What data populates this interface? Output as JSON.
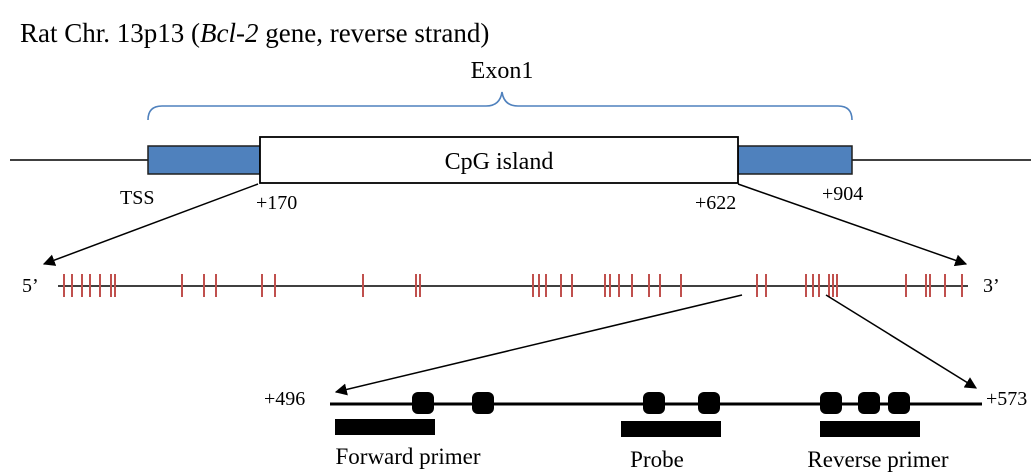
{
  "title": {
    "prefix": "Rat Chr. 13p13 (",
    "gene": "Bcl-2",
    "suffix": " gene, reverse strand)"
  },
  "exon_label": "Exon1",
  "cpg_label": "CpG island",
  "positions": {
    "tss": "TSS",
    "cpg_start": "+170",
    "cpg_end": "+622",
    "exon_end": "+904",
    "amplicon_start": "+496",
    "amplicon_end": "+573"
  },
  "strand": {
    "five_prime": "5’",
    "three_prime": "3’"
  },
  "assay": {
    "forward_primer": "Forward primer",
    "probe": "Probe",
    "reverse_primer": "Reverse primer"
  },
  "colors": {
    "exon_box": "#4f81bd",
    "bracket": "#4f81bd",
    "cpg_site": "#c0504d",
    "line": "#000000"
  }
}
